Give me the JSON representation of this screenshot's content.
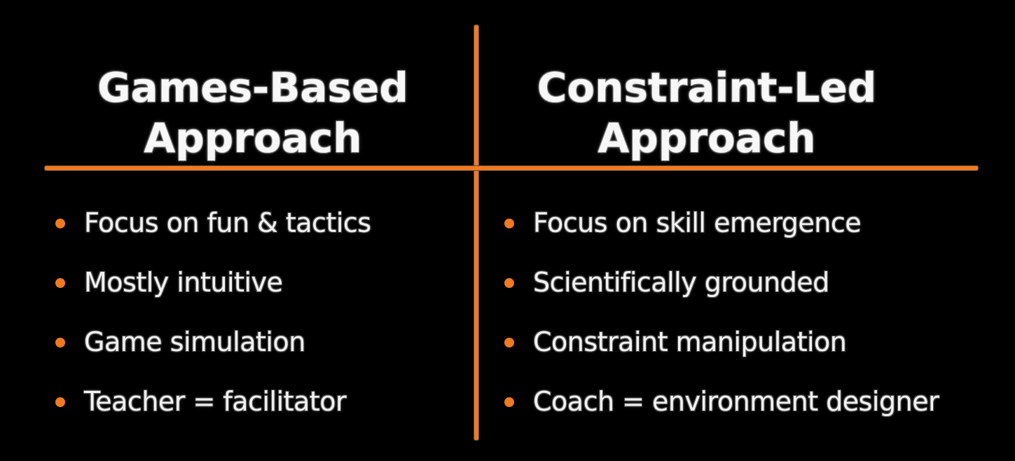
{
  "colors": {
    "background": "#000000",
    "accent": "#ef7a22",
    "text": "#f4f4f4"
  },
  "left": {
    "heading_line1": "Games-Based",
    "heading_line2": "Approach",
    "items": [
      "Focus on fun & tactics",
      "Mostly intuitive",
      "Game simulation",
      "Teacher = facilitator"
    ]
  },
  "right": {
    "heading_line1": "Constraint-Led",
    "heading_line2": "Approach",
    "items": [
      "Focus on skill emergence",
      "Scientifically grounded",
      "Constraint manipulation",
      "Coach = environment designer"
    ]
  }
}
